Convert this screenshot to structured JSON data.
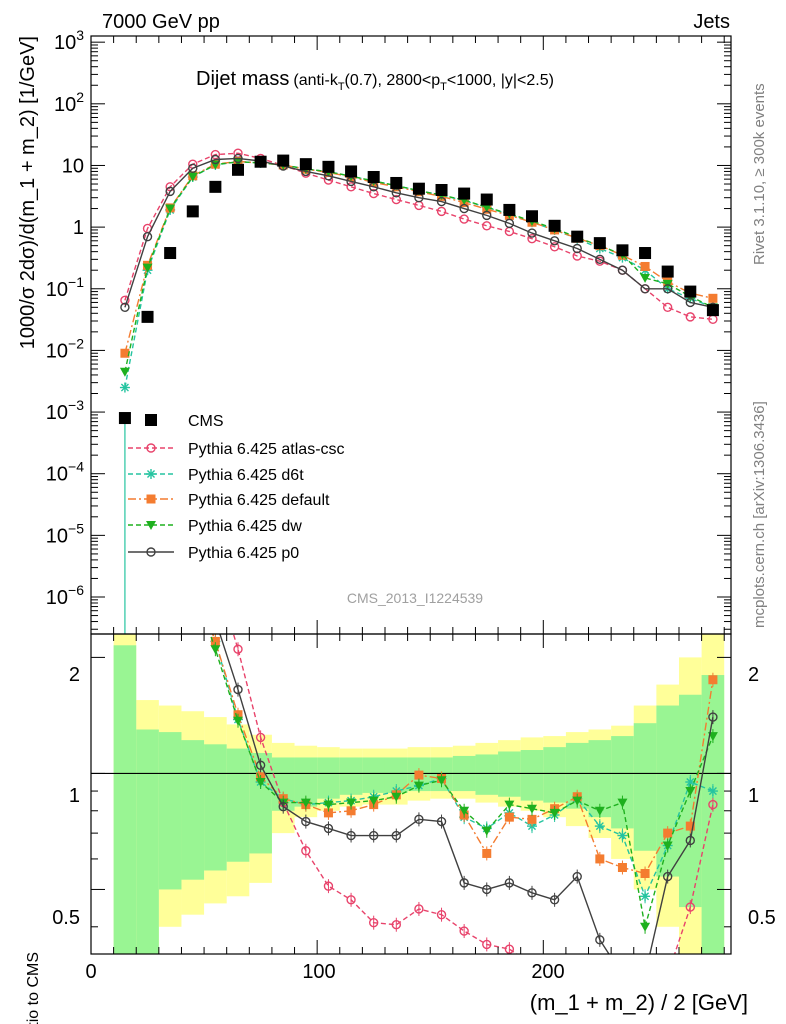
{
  "header": {
    "left": "7000 GeV pp",
    "right": "Jets",
    "side_top": "Rivet 3.1.10, ≥ 300k events",
    "side_bottom": "mcplots.cern.ch [arXiv:1306.3436]",
    "analysis_id": "CMS_2013_I1224539"
  },
  "plot_title": {
    "main": "Dijet mass",
    "sub_pre": "(anti-k",
    "sub_sub1": "T",
    "sub_mid": "(0.7), 2800<p",
    "sub_sub2": "T",
    "sub_post": "<1000, |y|<2.5)"
  },
  "legend": [
    {
      "key": "cms",
      "label": "CMS"
    },
    {
      "key": "atlas",
      "label": "Pythia 6.425 atlas-csc"
    },
    {
      "key": "d6t",
      "label": "Pythia 6.425 d6t"
    },
    {
      "key": "default",
      "label": "Pythia 6.425 default"
    },
    {
      "key": "dw",
      "label": "Pythia 6.425 dw"
    },
    {
      "key": "p0",
      "label": "Pythia 6.425 p0"
    }
  ],
  "axes": {
    "main_ylabel": "1000/σ 2dσ)/d(m_1 + m_2) [1/GeV]",
    "ratio_ylabel": "Ratio to CMS",
    "xlabel": "(m_1 + m_2) / 2 [GeV]",
    "x_ticks": [
      "0",
      "100",
      "200"
    ],
    "main_y_ticks": [
      {
        "base": "10",
        "exp": "3"
      },
      {
        "base": "10",
        "exp": "2"
      },
      {
        "base": "10",
        "exp": ""
      },
      {
        "base": "1",
        "exp": ""
      },
      {
        "base": "10",
        "exp": "−1"
      },
      {
        "base": "10",
        "exp": "−2"
      },
      {
        "base": "10",
        "exp": "−3"
      },
      {
        "base": "10",
        "exp": "−4"
      },
      {
        "base": "10",
        "exp": "−5"
      },
      {
        "base": "10",
        "exp": "−6"
      }
    ],
    "ratio_y_ticks": [
      "2",
      "1",
      "0.5"
    ]
  },
  "colors": {
    "cms": "#000000",
    "atlas": "#e8436b",
    "d6t": "#25c4a0",
    "default": "#f47c30",
    "dw": "#1eb01e",
    "p0": "#404040",
    "band_inner": "#99f593",
    "band_outer": "#ffff99"
  },
  "chart_data": {
    "type": "scatter",
    "x_label": "(m_1 + m_2) / 2 [GeV]",
    "xlim": [
      0,
      283
    ],
    "main_ylim_log10": [
      -6.6,
      3.1
    ],
    "ratio_ylim": [
      0.34,
      2.3
    ],
    "ratio_log_scale": true,
    "cms": {
      "x": [
        15,
        25,
        35,
        45,
        55,
        65,
        75,
        85,
        95,
        105,
        115,
        125,
        135,
        145,
        155,
        165,
        175,
        185,
        195,
        205,
        215,
        225,
        235,
        245,
        255,
        265,
        275
      ],
      "y": [
        0.0008,
        0.035,
        0.38,
        1.8,
        4.5,
        8.5,
        11.5,
        12,
        10.5,
        9.5,
        8,
        6.5,
        5.2,
        4.2,
        4,
        3.5,
        2.8,
        1.9,
        1.5,
        1.05,
        0.7,
        0.55,
        0.42,
        0.38,
        0.19,
        0.09,
        0.045
      ]
    },
    "series": [
      {
        "key": "atlas",
        "x": [
          15,
          25,
          35,
          45,
          55,
          65,
          75,
          85,
          95,
          105,
          115,
          125,
          135,
          145,
          155,
          165,
          175,
          185,
          195,
          205,
          215,
          225,
          235,
          245,
          255,
          265,
          275
        ],
        "y": [
          0.065,
          0.95,
          4.5,
          10.5,
          15,
          15.8,
          13,
          10,
          7.5,
          5.8,
          4.5,
          3.5,
          2.8,
          2.25,
          1.8,
          1.35,
          1.05,
          0.85,
          0.65,
          0.48,
          0.34,
          0.28,
          0.2,
          0.1,
          0.05,
          0.035,
          0.032
        ],
        "ratio": [
          null,
          null,
          null,
          null,
          3.3,
          2.1,
          1.24,
          0.84,
          0.63,
          0.51,
          0.47,
          0.41,
          0.405,
          0.445,
          0.43,
          0.39,
          0.36,
          0.35,
          0.32,
          0.3,
          0.3,
          0.3,
          0.3,
          0.3,
          0.3,
          0.45,
          0.83
        ]
      },
      {
        "key": "d6t",
        "x": [
          15,
          25,
          35,
          45,
          55,
          65,
          75,
          85,
          95,
          105,
          115,
          125,
          135,
          145,
          155,
          165,
          175,
          185,
          195,
          205,
          215,
          225,
          235,
          245,
          255,
          265,
          275
        ],
        "y": [
          0.0025,
          0.2,
          1.9,
          6.5,
          10.2,
          11.5,
          11,
          10.2,
          8.8,
          7.9,
          6.7,
          5.6,
          4.7,
          3.9,
          3.3,
          2.7,
          2.1,
          1.6,
          1.2,
          0.9,
          0.65,
          0.45,
          0.32,
          0.2,
          0.1,
          0.07,
          0.05
        ],
        "ratio": [
          null,
          null,
          null,
          3.2,
          2.2,
          1.38,
          0.95,
          0.86,
          0.83,
          0.84,
          0.85,
          0.87,
          0.9,
          0.93,
          0.97,
          0.77,
          0.72,
          0.79,
          0.73,
          0.78,
          0.86,
          0.73,
          0.69,
          0.48,
          0.65,
          0.95,
          0.9
        ]
      },
      {
        "key": "default",
        "x": [
          15,
          25,
          35,
          45,
          55,
          65,
          75,
          85,
          95,
          105,
          115,
          125,
          135,
          145,
          155,
          165,
          175,
          185,
          195,
          205,
          215,
          225,
          235,
          245,
          255,
          265,
          275
        ],
        "y": [
          0.009,
          0.24,
          2.05,
          6.8,
          10.5,
          11.6,
          11,
          10.2,
          8.7,
          7.7,
          6.5,
          5.3,
          4.5,
          3.75,
          3.15,
          2.5,
          1.95,
          1.55,
          1.2,
          0.9,
          0.66,
          0.5,
          0.35,
          0.23,
          0.13,
          0.085,
          0.07
        ],
        "ratio": [
          null,
          null,
          null,
          3.2,
          2.2,
          1.42,
          0.98,
          0.86,
          0.83,
          0.79,
          0.8,
          0.83,
          0.88,
          0.99,
          0.97,
          0.78,
          0.62,
          0.77,
          0.76,
          0.81,
          0.87,
          0.6,
          0.57,
          0.55,
          0.7,
          0.73,
          1.75
        ]
      },
      {
        "key": "dw",
        "x": [
          15,
          25,
          35,
          45,
          55,
          65,
          75,
          85,
          95,
          105,
          115,
          125,
          135,
          145,
          155,
          165,
          175,
          185,
          195,
          205,
          215,
          225,
          235,
          245,
          255,
          265,
          275
        ],
        "y": [
          0.0045,
          0.22,
          2,
          6.6,
          10.3,
          11.5,
          11,
          10.2,
          8.8,
          7.9,
          6.7,
          5.6,
          4.7,
          3.9,
          3.3,
          2.75,
          2.1,
          1.65,
          1.25,
          0.95,
          0.68,
          0.5,
          0.36,
          0.15,
          0.12,
          0.075,
          0.05
        ],
        "ratio": [
          null,
          null,
          null,
          3.1,
          2.1,
          1.37,
          0.95,
          0.84,
          0.84,
          0.83,
          0.84,
          0.85,
          0.87,
          0.93,
          0.96,
          0.8,
          0.71,
          0.83,
          0.81,
          0.79,
          0.85,
          0.8,
          0.84,
          0.4,
          0.65,
          0.9,
          1.25
        ]
      },
      {
        "key": "p0",
        "x": [
          15,
          25,
          35,
          45,
          55,
          65,
          75,
          85,
          95,
          105,
          115,
          125,
          135,
          145,
          155,
          165,
          175,
          185,
          195,
          205,
          215,
          225,
          235,
          245,
          255,
          265,
          275
        ],
        "y": [
          0.05,
          0.7,
          3.8,
          9,
          12.5,
          13,
          11.8,
          9.8,
          8,
          6.8,
          5.5,
          4.5,
          3.6,
          3,
          2.6,
          2,
          1.55,
          1.15,
          0.8,
          0.6,
          0.45,
          0.3,
          0.2,
          0.1,
          0.1,
          0.06,
          0.05
        ],
        "ratio": [
          null,
          null,
          null,
          3.2,
          2.5,
          1.65,
          1.05,
          0.82,
          0.75,
          0.72,
          0.69,
          0.69,
          0.69,
          0.76,
          0.75,
          0.52,
          0.5,
          0.52,
          0.49,
          0.47,
          0.54,
          0.37,
          0.3,
          0.3,
          0.54,
          0.67,
          1.4
        ]
      }
    ],
    "ratio_band": {
      "x_edges": [
        10,
        20,
        30,
        40,
        50,
        60,
        70,
        80,
        90,
        100,
        110,
        120,
        130,
        140,
        150,
        160,
        170,
        180,
        190,
        200,
        210,
        220,
        230,
        240,
        250,
        260,
        270,
        280
      ],
      "inner_low": [
        0.34,
        0.34,
        0.5,
        0.53,
        0.56,
        0.59,
        0.62,
        0.8,
        0.82,
        0.86,
        0.88,
        0.89,
        0.89,
        0.9,
        0.9,
        0.9,
        0.88,
        0.87,
        0.85,
        0.84,
        0.81,
        0.77,
        0.72,
        0.63,
        0.54,
        0.45,
        0.34
      ],
      "inner_high": [
        2.15,
        1.3,
        1.28,
        1.22,
        1.19,
        1.16,
        1.13,
        1.1,
        1.1,
        1.1,
        1.1,
        1.1,
        1.1,
        1.1,
        1.1,
        1.11,
        1.12,
        1.14,
        1.15,
        1.17,
        1.2,
        1.22,
        1.25,
        1.35,
        1.5,
        1.6,
        1.8
      ],
      "outer_low": [
        0.34,
        0.34,
        0.4,
        0.43,
        0.46,
        0.48,
        0.52,
        0.7,
        0.77,
        0.8,
        0.82,
        0.83,
        0.83,
        0.85,
        0.86,
        0.86,
        0.84,
        0.82,
        0.8,
        0.77,
        0.73,
        0.68,
        0.6,
        0.5,
        0.4,
        0.34,
        0.34
      ],
      "outer_high": [
        2.3,
        1.55,
        1.5,
        1.45,
        1.4,
        1.34,
        1.26,
        1.2,
        1.18,
        1.17,
        1.16,
        1.16,
        1.16,
        1.17,
        1.17,
        1.18,
        1.2,
        1.22,
        1.24,
        1.25,
        1.28,
        1.3,
        1.33,
        1.5,
        1.7,
        2,
        2.3
      ]
    }
  }
}
